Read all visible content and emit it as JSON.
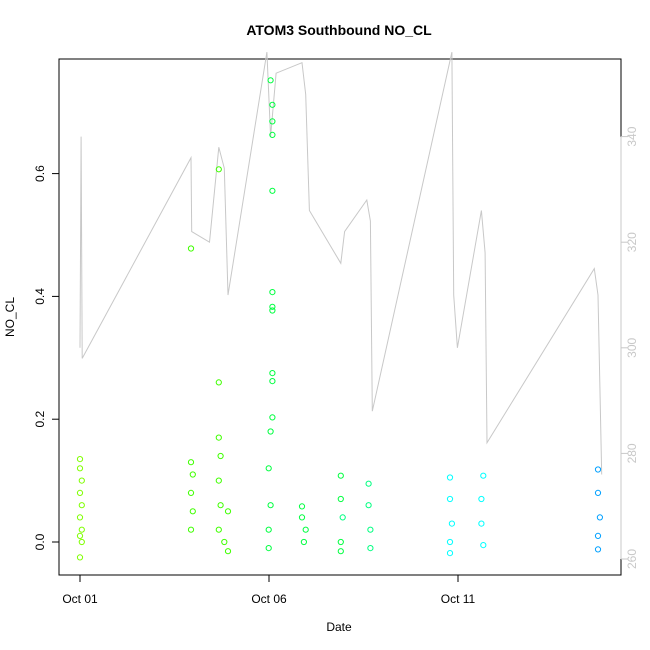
{
  "chart_data": {
    "type": "scatter",
    "title": "ATOM3 Southbound NO_CL",
    "xlabel": "Date",
    "ylabel": "NO_CL",
    "x_ticks": [
      "Oct 01",
      "Oct 06",
      "Oct 11"
    ],
    "xlim": [
      0,
      14.5
    ],
    "ylim": [
      -0.05,
      0.78
    ],
    "y_ticks": [
      0.0,
      0.2,
      0.4,
      0.6
    ],
    "y2lim": [
      258,
      362
    ],
    "y2_ticks": [
      260,
      280,
      300,
      320,
      340
    ],
    "grid": false,
    "legend": "none",
    "colors": {
      "axis": "#000000",
      "secondary": "#c8c8c8",
      "points": [
        "#7fff00",
        "#3fff00",
        "#00ff40",
        "#00ff80",
        "#00ffff",
        "#00a0ff"
      ]
    },
    "series": [
      {
        "points": [
          {
            "x": 0.0,
            "y": 0.135
          },
          {
            "x": 0.0,
            "y": 0.12
          },
          {
            "x": 0.05,
            "y": 0.1
          },
          {
            "x": 0.0,
            "y": 0.08
          },
          {
            "x": 0.05,
            "y": 0.06
          },
          {
            "x": 0.0,
            "y": 0.04
          },
          {
            "x": 0.05,
            "y": 0.02
          },
          {
            "x": 0.0,
            "y": 0.01
          },
          {
            "x": 0.05,
            "y": 0.0
          },
          {
            "x": 0.0,
            "y": -0.025
          },
          {
            "x": 3.0,
            "y": 0.478
          },
          {
            "x": 3.0,
            "y": 0.13
          },
          {
            "x": 3.05,
            "y": 0.11
          },
          {
            "x": 3.0,
            "y": 0.08
          },
          {
            "x": 3.05,
            "y": 0.05
          },
          {
            "x": 3.0,
            "y": 0.02
          },
          {
            "x": 3.75,
            "y": 0.607
          },
          {
            "x": 3.75,
            "y": 0.26
          },
          {
            "x": 3.75,
            "y": 0.17
          },
          {
            "x": 3.8,
            "y": 0.14
          },
          {
            "x": 3.75,
            "y": 0.1
          },
          {
            "x": 3.8,
            "y": 0.06
          },
          {
            "x": 3.75,
            "y": 0.02
          },
          {
            "x": 3.9,
            "y": 0.0
          },
          {
            "x": 4.0,
            "y": 0.05
          },
          {
            "x": 4.0,
            "y": -0.015
          },
          {
            "x": 5.15,
            "y": 0.752
          },
          {
            "x": 5.2,
            "y": 0.712
          },
          {
            "x": 5.2,
            "y": 0.685
          },
          {
            "x": 5.2,
            "y": 0.663
          },
          {
            "x": 5.2,
            "y": 0.572
          },
          {
            "x": 5.2,
            "y": 0.407
          },
          {
            "x": 5.2,
            "y": 0.383
          },
          {
            "x": 5.2,
            "y": 0.377
          },
          {
            "x": 5.2,
            "y": 0.275
          },
          {
            "x": 5.2,
            "y": 0.262
          },
          {
            "x": 5.2,
            "y": 0.203
          },
          {
            "x": 5.15,
            "y": 0.18
          },
          {
            "x": 5.1,
            "y": 0.12
          },
          {
            "x": 5.15,
            "y": 0.06
          },
          {
            "x": 5.1,
            "y": 0.02
          },
          {
            "x": 5.1,
            "y": -0.01
          },
          {
            "x": 6.0,
            "y": 0.058
          },
          {
            "x": 6.0,
            "y": 0.04
          },
          {
            "x": 6.1,
            "y": 0.02
          },
          {
            "x": 6.05,
            "y": 0.0
          },
          {
            "x": 7.05,
            "y": 0.108
          },
          {
            "x": 7.05,
            "y": 0.07
          },
          {
            "x": 7.1,
            "y": 0.04
          },
          {
            "x": 7.05,
            "y": 0.0
          },
          {
            "x": 7.05,
            "y": -0.015
          },
          {
            "x": 7.8,
            "y": 0.095
          },
          {
            "x": 7.8,
            "y": 0.06
          },
          {
            "x": 7.85,
            "y": 0.02
          },
          {
            "x": 7.85,
            "y": -0.01
          },
          {
            "x": 10.0,
            "y": 0.105
          },
          {
            "x": 10.0,
            "y": 0.07
          },
          {
            "x": 10.05,
            "y": 0.03
          },
          {
            "x": 10.0,
            "y": 0.0
          },
          {
            "x": 10.0,
            "y": -0.018
          },
          {
            "x": 10.9,
            "y": 0.108
          },
          {
            "x": 10.85,
            "y": 0.07
          },
          {
            "x": 10.85,
            "y": 0.03
          },
          {
            "x": 10.9,
            "y": -0.005
          },
          {
            "x": 14.0,
            "y": 0.118
          },
          {
            "x": 14.0,
            "y": 0.08
          },
          {
            "x": 14.05,
            "y": 0.04
          },
          {
            "x": 14.0,
            "y": 0.01
          },
          {
            "x": 14.0,
            "y": -0.012
          }
        ]
      },
      {
        "y_axis": "right",
        "points": [
          {
            "x": 0.0,
            "y": 300
          },
          {
            "x": 0.03,
            "y": 340
          },
          {
            "x": 0.06,
            "y": 298
          },
          {
            "x": 3.0,
            "y": 336
          },
          {
            "x": 3.02,
            "y": 322
          },
          {
            "x": 3.5,
            "y": 320
          },
          {
            "x": 3.75,
            "y": 338
          },
          {
            "x": 3.9,
            "y": 334
          },
          {
            "x": 4.0,
            "y": 310
          },
          {
            "x": 5.05,
            "y": 356
          },
          {
            "x": 5.15,
            "y": 340
          },
          {
            "x": 5.3,
            "y": 352
          },
          {
            "x": 6.0,
            "y": 354
          },
          {
            "x": 6.1,
            "y": 348
          },
          {
            "x": 6.2,
            "y": 326
          },
          {
            "x": 7.05,
            "y": 316
          },
          {
            "x": 7.15,
            "y": 322
          },
          {
            "x": 7.75,
            "y": 328
          },
          {
            "x": 7.85,
            "y": 324
          },
          {
            "x": 7.9,
            "y": 288
          },
          {
            "x": 10.05,
            "y": 356
          },
          {
            "x": 10.1,
            "y": 310
          },
          {
            "x": 10.2,
            "y": 300
          },
          {
            "x": 10.85,
            "y": 326
          },
          {
            "x": 10.95,
            "y": 318
          },
          {
            "x": 11.0,
            "y": 282
          },
          {
            "x": 13.9,
            "y": 315
          },
          {
            "x": 14.0,
            "y": 310
          },
          {
            "x": 14.1,
            "y": 276
          }
        ]
      }
    ]
  }
}
